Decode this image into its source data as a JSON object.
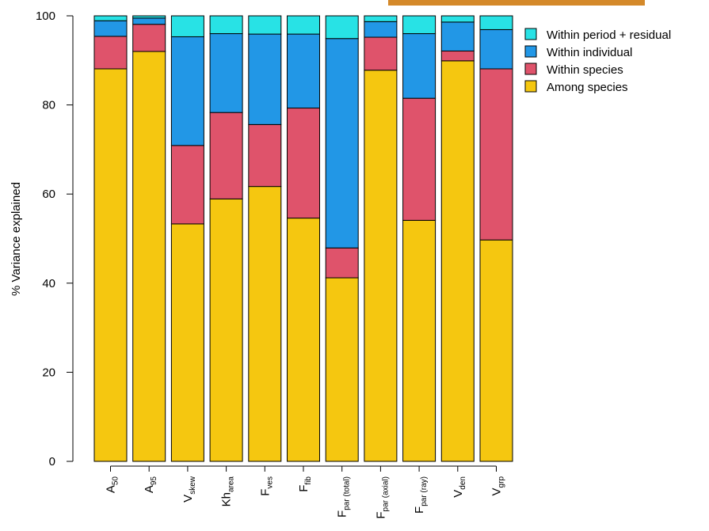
{
  "chart_data": {
    "type": "bar",
    "stacked": true,
    "ylabel": "% Variance explained",
    "xlabel": "",
    "ylim": [
      0,
      100
    ],
    "yticks": [
      0,
      20,
      40,
      60,
      80,
      100
    ],
    "legend_position": "top-right",
    "categories": [
      {
        "main": "A",
        "sub": "50"
      },
      {
        "main": "A",
        "sub": "95"
      },
      {
        "main": "V",
        "sub": "skew"
      },
      {
        "main": "Kh",
        "sub": "area"
      },
      {
        "main": "F",
        "sub": "ves"
      },
      {
        "main": "F",
        "sub": "fib"
      },
      {
        "main": "F",
        "sub": "par (total)"
      },
      {
        "main": "F",
        "sub": "par (axial)"
      },
      {
        "main": "F",
        "sub": "par (ray)"
      },
      {
        "main": "V",
        "sub": "den"
      },
      {
        "main": "V",
        "sub": "grp"
      }
    ],
    "series": [
      {
        "name": "Among species",
        "color": "#F5C710",
        "values": [
          88.1,
          92.0,
          53.3,
          58.9,
          61.7,
          54.6,
          41.2,
          87.8,
          54.1,
          89.9,
          49.7
        ]
      },
      {
        "name": "Within species",
        "color": "#DF536B",
        "values": [
          7.3,
          6.1,
          17.6,
          19.4,
          13.9,
          24.7,
          6.7,
          7.4,
          27.4,
          2.2,
          38.4
        ]
      },
      {
        "name": "Within individual",
        "color": "#2297E6",
        "values": [
          3.5,
          1.4,
          24.4,
          17.7,
          20.3,
          16.6,
          47.0,
          3.5,
          14.5,
          6.5,
          8.8
        ]
      },
      {
        "name": "Within period + residual",
        "color": "#28E2E5",
        "values": [
          1.1,
          0.5,
          4.7,
          4.0,
          4.1,
          4.1,
          5.1,
          1.3,
          4.0,
          1.4,
          3.1
        ]
      }
    ],
    "legend_order": [
      "Within period + residual",
      "Within individual",
      "Within species",
      "Among species"
    ]
  },
  "colors": {
    "topbar": "#D4892A"
  }
}
